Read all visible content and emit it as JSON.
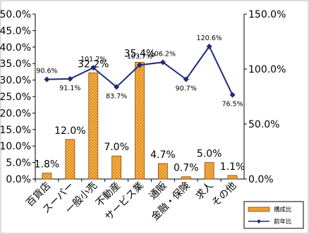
{
  "chart_data": {
    "type": "bar+line",
    "categories": [
      "百貨店",
      "スーパー",
      "一般小売",
      "不動産",
      "サービス業",
      "通販",
      "金融・保険",
      "求人",
      "その他"
    ],
    "series": [
      {
        "name": "構成比",
        "type": "bar",
        "axis": "left",
        "values": [
          1.8,
          12.0,
          32.2,
          7.0,
          35.4,
          4.7,
          0.7,
          5.0,
          1.1
        ],
        "labels": [
          "1.8%",
          "12.0%",
          "32.2%",
          "7.0%",
          "35.4%",
          "4.7%",
          "0.7%",
          "5.0%",
          "1.1%"
        ]
      },
      {
        "name": "前年比",
        "type": "line",
        "axis": "right",
        "values": [
          90.6,
          91.1,
          101.2,
          83.7,
          103.7,
          106.2,
          90.7,
          120.6,
          76.5
        ],
        "labels": [
          "90.6%",
          "91.1%",
          "101.2%",
          "83.7%",
          "103.7%",
          "106.2%",
          "90.7%",
          "120.6%",
          "76.5%"
        ]
      }
    ],
    "y_left": {
      "ylim": [
        0,
        50
      ],
      "ticks": [
        "0.0%",
        "5.0%",
        "10.0%",
        "15.0%",
        "20.0%",
        "25.0%",
        "30.0%",
        "35.0%",
        "40.0%",
        "45.0%",
        "50.0%"
      ]
    },
    "y_right": {
      "ylim": [
        0,
        150
      ],
      "ticks": [
        "0.0%",
        "50.0%",
        "100.0%",
        "150.0%"
      ]
    },
    "grid": false,
    "legend": "bottom-right",
    "colors": {
      "bar_fill": "#f5a623",
      "bar_stroke": "#8a4a00",
      "line": "#1f2a7a"
    }
  }
}
